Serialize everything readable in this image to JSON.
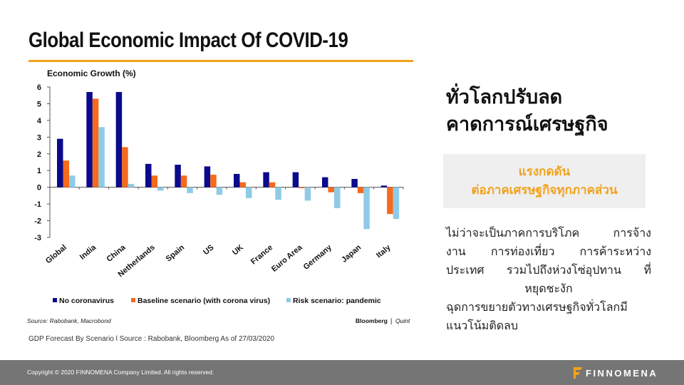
{
  "slide": {
    "title": "Global Economic Impact Of COVID-19",
    "source_note": "GDP Forecast By Scenario l Source : Rabobank, Bloomberg As of 27/03/2020"
  },
  "right_panel": {
    "heading_line1": "ทั่วโลกปรับลด",
    "heading_line2": "คาดการณ์เศรษฐกิจ",
    "callout_line1": "แรงกดดัน",
    "callout_line2": "ต่อภาคเศรษฐกิจทุกภาคส่วน",
    "body_lines": [
      "ไม่ว่าจะเป็นภาคการบริโภค การจ้าง",
      "งาน การท่องเที่ยว การค้าระหว่าง",
      "ประเทศ รวมไปถึงห่วงโซ่อุปทาน ที่",
      "หยุดชะงัก",
      "ฉุดการขยายตัวทางเศรษฐกิจทั่วโลกมี",
      "แนวโน้มติดลบ"
    ]
  },
  "footer": {
    "copyright": "Copyright © 2020 FINNOMENA Company Limited. All rights reserved.",
    "brand": "FINNOMENA"
  },
  "colors": {
    "accent": "#f2a21b",
    "no_coronavirus": "#0b0a8c",
    "baseline": "#f56a1c",
    "risk": "#8fcbe6",
    "footer_bg": "#757575"
  },
  "chart_data": {
    "type": "bar",
    "title": "Economic Growth (%)",
    "xlabel": "",
    "ylabel": "Economic Growth (%)",
    "ylim": [
      -3,
      6
    ],
    "yticks": [
      6,
      5,
      4,
      3,
      2,
      1,
      0,
      -1,
      -2,
      -3
    ],
    "grid": false,
    "legend_position": "bottom",
    "categories": [
      "Global",
      "India",
      "China",
      "Netherlands",
      "Spain",
      "US",
      "UK",
      "France",
      "Euro Area",
      "Germany",
      "Japan",
      "Italy"
    ],
    "series": [
      {
        "name": "No coronavirus",
        "color": "#0b0a8c",
        "values": [
          2.9,
          5.7,
          5.7,
          1.4,
          1.35,
          1.25,
          0.8,
          0.9,
          0.9,
          0.6,
          0.5,
          0.1
        ]
      },
      {
        "name": "Baseline scenario (with corona virus)",
        "color": "#f56a1c",
        "values": [
          1.6,
          5.3,
          2.4,
          0.7,
          0.7,
          0.75,
          0.3,
          0.3,
          -0.05,
          -0.3,
          -0.35,
          -1.6
        ]
      },
      {
        "name": "Risk scenario: pandemic",
        "color": "#8fcbe6",
        "values": [
          0.7,
          3.6,
          0.2,
          -0.2,
          -0.35,
          -0.45,
          -0.65,
          -0.75,
          -0.8,
          -1.25,
          -2.5,
          -1.9
        ]
      }
    ],
    "source": "Source: Rabobank, Macrobond",
    "credit_left": "Bloomberg",
    "credit_sep": "|",
    "credit_right": "Quint"
  }
}
